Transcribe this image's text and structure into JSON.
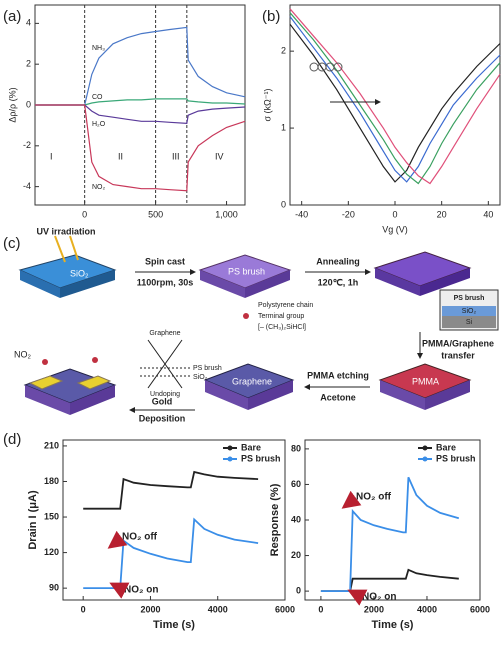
{
  "chart_data": [
    {
      "type": "line",
      "panel_label": "(a)",
      "y_label": "Δρ/ρ (%)",
      "x": [
        -350,
        0,
        50,
        100,
        200,
        300,
        400,
        500,
        600,
        720,
        730,
        800,
        900,
        1000,
        1130
      ],
      "series": [
        {
          "name": "NH₃",
          "color": "#4a78c8",
          "values": [
            0,
            0,
            1.5,
            2.3,
            3.0,
            3.3,
            3.5,
            3.6,
            3.7,
            3.8,
            2.2,
            1.4,
            0.9,
            0.6,
            0.4
          ]
        },
        {
          "name": "CO",
          "color": "#3aa878",
          "values": [
            0,
            0,
            0.1,
            0.15,
            0.2,
            0.25,
            0.25,
            0.3,
            0.3,
            0.3,
            0.2,
            0.15,
            0.1,
            0.1,
            0.05
          ]
        },
        {
          "name": "H₂O",
          "color": "#5a3a9a",
          "values": [
            0,
            0,
            -0.3,
            -0.5,
            -0.6,
            -0.7,
            -0.8,
            -0.8,
            -0.85,
            -0.9,
            -0.5,
            -0.3,
            -0.2,
            -0.15,
            -0.1
          ]
        },
        {
          "name": "NO₂",
          "color": "#c8385a",
          "values": [
            0,
            0,
            -2.8,
            -3.5,
            -3.9,
            -4.0,
            -4.1,
            -4.1,
            -4.15,
            -4.2,
            -2.8,
            -2.0,
            -1.5,
            -1.1,
            -0.8
          ]
        }
      ],
      "annotations": [
        "I",
        "II",
        "III",
        "IV"
      ],
      "vlines": [
        0,
        500,
        720
      ],
      "xlim": [
        -350,
        1130
      ],
      "ylim": [
        -4.9,
        4.9
      ],
      "xticks": [
        0,
        500,
        {
          "value": 1000,
          "label": "1,000"
        }
      ],
      "yticks": [
        -4,
        -2,
        0,
        2,
        4
      ]
    },
    {
      "type": "line",
      "panel_label": "(b)",
      "x_label": "Vg (V)",
      "y_label": "σ (kΩ⁻¹)",
      "x": [
        -45,
        -35,
        -25,
        -15,
        -5,
        0,
        5,
        10,
        15,
        20,
        25,
        35,
        45
      ],
      "series": [
        {
          "color": "#222222",
          "values": [
            2.35,
            1.95,
            1.5,
            1.0,
            0.5,
            0.3,
            0.45,
            0.75,
            1.0,
            1.25,
            1.45,
            1.8,
            2.1
          ]
        },
        {
          "color": "#3a6ad0",
          "values": [
            2.45,
            2.05,
            1.65,
            1.2,
            0.7,
            0.45,
            0.3,
            0.5,
            0.8,
            1.05,
            1.3,
            1.65,
            1.95
          ]
        },
        {
          "color": "#3aa060",
          "values": [
            2.5,
            2.15,
            1.75,
            1.3,
            0.85,
            0.6,
            0.4,
            0.28,
            0.5,
            0.8,
            1.05,
            1.5,
            1.85
          ]
        },
        {
          "color": "#e0507a",
          "values": [
            2.55,
            2.2,
            1.85,
            1.45,
            1.0,
            0.75,
            0.55,
            0.38,
            0.28,
            0.5,
            0.75,
            1.25,
            1.7
          ]
        }
      ],
      "xlim": [
        -45,
        45
      ],
      "ylim": [
        0,
        2.6
      ],
      "xticks": [
        -40,
        -20,
        0,
        20,
        40
      ],
      "yticks": [
        0,
        1,
        2
      ]
    },
    {
      "type": "line",
      "panel_label": "(d)",
      "x_label": "Time (s)",
      "y_label": "Drain I (μA)",
      "legend": "upper right",
      "x": [
        0,
        1000,
        1100,
        1200,
        1500,
        2000,
        2500,
        3100,
        3200,
        3300,
        3600,
        4000,
        4500,
        5200
      ],
      "series": [
        {
          "name": "Bare",
          "color": "#222222",
          "values": [
            157,
            157,
            157,
            182,
            179,
            177,
            176,
            175,
            175,
            188,
            186,
            184,
            183,
            182
          ]
        },
        {
          "name": "PS brush",
          "color": "#3a8ee8",
          "values": [
            90,
            90,
            90,
            130,
            124,
            119,
            115,
            112,
            112,
            148,
            140,
            135,
            131,
            128
          ]
        }
      ],
      "annotations": [
        "NO₂ off",
        "NO₂ on"
      ],
      "xlim": [
        -600,
        6000
      ],
      "ylim": [
        80,
        215
      ],
      "xticks": [
        0,
        2000,
        4000,
        6000
      ],
      "yticks": [
        90,
        120,
        150,
        180,
        210
      ]
    },
    {
      "type": "line",
      "x_label": "Time (s)",
      "y_label": "Response (%)",
      "legend": "upper right",
      "x": [
        0,
        1000,
        1100,
        1200,
        1500,
        2000,
        2500,
        3100,
        3200,
        3300,
        3600,
        4000,
        4500,
        5200
      ],
      "series": [
        {
          "name": "Bare",
          "color": "#222222",
          "values": [
            0,
            0,
            0,
            7,
            7,
            7,
            7,
            7,
            7,
            12,
            10,
            9,
            8,
            7
          ]
        },
        {
          "name": "PS brush",
          "color": "#3a8ee8",
          "values": [
            0,
            0,
            0,
            45,
            40,
            37,
            35,
            33,
            33,
            64,
            54,
            48,
            44,
            41
          ]
        }
      ],
      "annotations": [
        "NO₂ off",
        "NO₂ on"
      ],
      "xlim": [
        -600,
        6000
      ],
      "ylim": [
        -5,
        85
      ],
      "xticks": [
        0,
        2000,
        4000,
        6000
      ],
      "yticks": [
        0,
        20,
        40,
        60,
        80
      ]
    }
  ],
  "diagram": {
    "panel_label": "(c)",
    "uv": "UV irradiation",
    "sio2_a": "SiO₂",
    "step1": "Spin cast",
    "step1_cond": "1100rpm, 30s",
    "psbrush_a": "PS brush",
    "step2": "Annealing",
    "step2_cond": "120℃, 1h",
    "chain": "Polystyrene chain",
    "terminal": "Terminal group",
    "formula": "[– (CH₃)₂SiHCl]",
    "inset_ps": "PS brush",
    "inset_sio2": "SiO₂",
    "inset_si": "Si",
    "step3": "PMMA/Graphene",
    "step3b": "transfer",
    "pmma": "PMMA",
    "step4": "PMMA etching",
    "step4_cond": "Acetone",
    "graphene_block": "Graphene",
    "cone_graphene": "Graphene",
    "cone_ps": "PS brush",
    "cone_sio2": "SiO₂",
    "cone_undoping": "Undoping",
    "step5": "Gold",
    "step5b": "Deposition",
    "no2": "NO₂"
  }
}
